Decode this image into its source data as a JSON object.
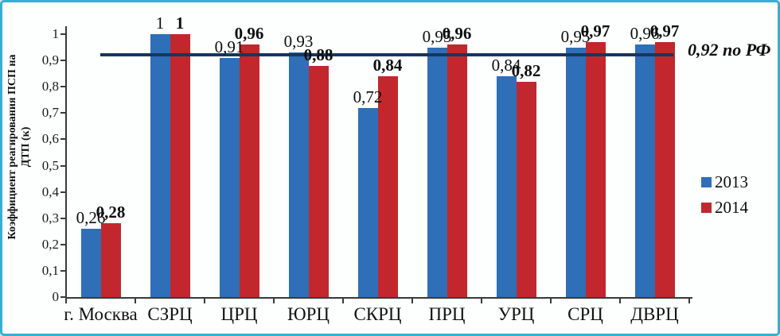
{
  "frame": {
    "border_color": "#35AFD3",
    "background": "#FDFEFE"
  },
  "chart_data": {
    "type": "bar",
    "title": "",
    "categories": [
      "г. Москва",
      "СЗРЦ",
      "ЦРЦ",
      "ЮРЦ",
      "СКРЦ",
      "ПРЦ",
      "УРЦ",
      "СРЦ",
      "ДВРЦ"
    ],
    "series": [
      {
        "name": "2013",
        "color": "#2E6FB7",
        "values": [
          0.26,
          1,
          0.91,
          0.93,
          0.72,
          0.95,
          0.84,
          0.95,
          0.96
        ],
        "labels": [
          "0,26",
          "1",
          "0,91",
          "0,93",
          "0,72",
          "0,95",
          "0,84",
          "0,95",
          "0,96"
        ]
      },
      {
        "name": "2014",
        "color": "#C1272D",
        "values": [
          0.28,
          1,
          0.96,
          0.88,
          0.84,
          0.96,
          0.82,
          0.97,
          0.97
        ],
        "labels": [
          "0,28",
          "1",
          "0,96",
          "0,88",
          "0,84",
          "0,96",
          "0,82",
          "0,97",
          "0,97"
        ]
      }
    ],
    "xlabel": "",
    "ylabel": "Коэффициент реагирования ПСП на ДТП (к)",
    "ylabel_lines": [
      "Коэффициент реагирования ПСП на",
      "ДТП (к)"
    ],
    "ylim": [
      0,
      1
    ],
    "ytick_labels": [
      "0",
      "0,1",
      "0,2",
      "0,3",
      "0,4",
      "0,5",
      "0,6",
      "0,7",
      "0,8",
      "0,9",
      "1"
    ],
    "grid": false,
    "legend_position": "right",
    "legend_entries": [
      "2013",
      "2014"
    ],
    "ref_line": {
      "value": 0.92,
      "label": "0,92 по РФ",
      "color": "#17365D"
    }
  }
}
